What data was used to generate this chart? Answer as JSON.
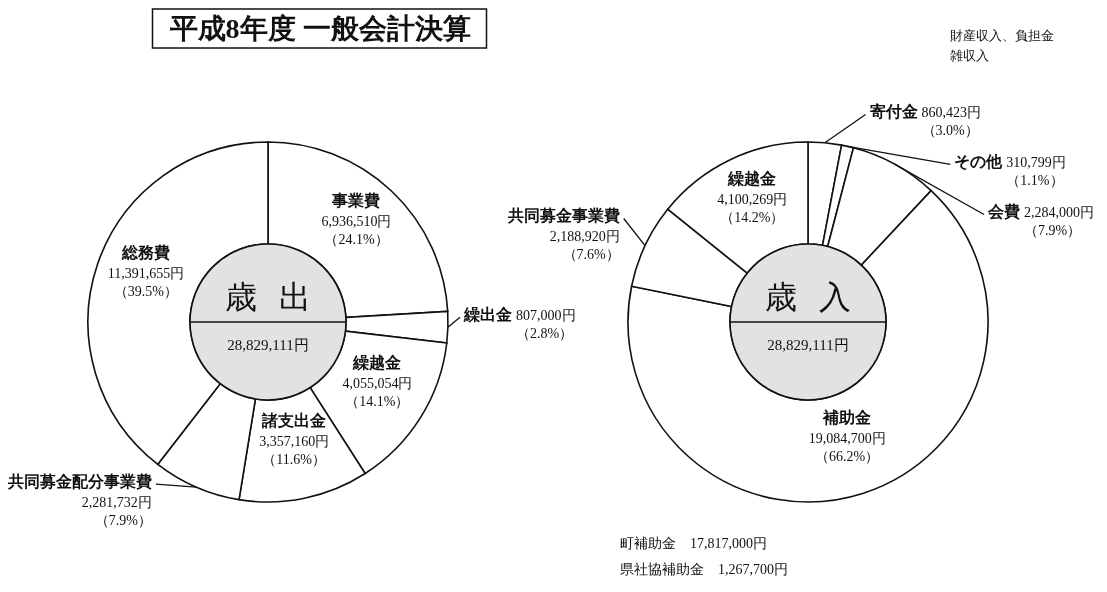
{
  "chart_data": [
    {
      "type": "donut",
      "title": "歳出",
      "subtitle": "28,829,111円",
      "categories": [
        "事業費",
        "繰出金",
        "繰越金",
        "諸支出金",
        "共同募金配分事業費",
        "総務費"
      ],
      "values": [
        6936510,
        807000,
        4055054,
        3357160,
        2281732,
        11391655
      ],
      "colors": [
        "#ffffff",
        "#ffffff",
        "#ffffff",
        "#ffffff",
        "#ffffff",
        "#ffffff"
      ],
      "value_labels": [
        "6,936,510円（24.1%）",
        "807,000円（2.8%）",
        "4,055,054円（14.1%）",
        "3,357,160円（11.6%）",
        "2,281,732円（7.9%）",
        "11,391,655円（39.5%）"
      ],
      "annotations": [
        "平成8年度 一般会計決算"
      ]
    },
    {
      "type": "donut",
      "title": "歳入",
      "subtitle": "28,829,111円",
      "categories": [
        "寄付金",
        "その他",
        "会費",
        "補助金",
        "共同募金事業費",
        "繰越金"
      ],
      "values": [
        860423,
        310799,
        2284000,
        19084700,
        2188920,
        4100269
      ],
      "colors": [
        "#ffffff",
        "#ffffff",
        "#ffffff",
        "#ffffff",
        "#ffffff",
        "#ffffff"
      ],
      "value_labels": [
        "860,423円（3.0%）",
        "310,799円（1.1%）",
        "2,284,000円（7.9%）",
        "19,084,700円（66.2%）",
        "2,188,920円（7.6%）",
        "4,100,269円（14.2%）"
      ],
      "annotations": [
        "財産収入、負担金",
        "雑収入",
        "町補助金　17,817,000円",
        "県社協補助金　1,267,700円"
      ]
    }
  ]
}
